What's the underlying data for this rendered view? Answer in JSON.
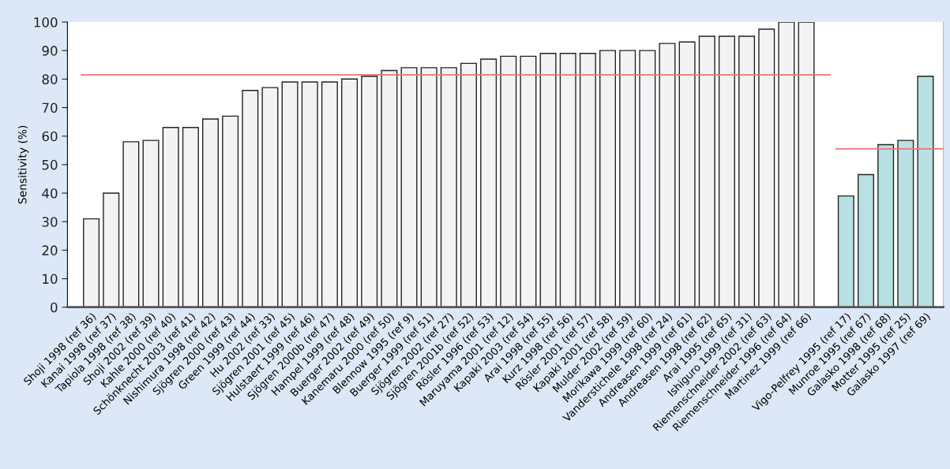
{
  "chart_data": {
    "type": "bar",
    "ylabel": "Sensitivity (%)",
    "categories": [
      "Shoji 1998 (ref 36)",
      "Kanai 1998 (ref 37)",
      "Tapiola 1998 (ref 38)",
      "Shoji 2002 (ref 39)",
      "Kahle 2000 (ref 40)",
      "Schönknecht 2003 (ref 41)",
      "Nishimura 1998 (ref 42)",
      "Sjögren 2000 (ref 43)",
      "Green 1999 (ref 44)",
      "Hu 2002 (ref 33)",
      "Sjögren 2001 (ref 45)",
      "Hulstaert 1999 (ref 46)",
      "Sjögren 2000b (ref 47)",
      "Hampel 1999 (ref 48)",
      "Buerger 2002 (ref 49)",
      "Kanemaru 2000 (ref 50)",
      "Blennow 1995 (ref 9)",
      "Buerger 1999 (ref 51)",
      "Sjögren 2002 (ref 27)",
      "Sjögren 2001b (ref 52)",
      "Rösler 1996 (ref 53)",
      "Maruyama 2001 (ref 12)",
      "Kapaki 2003 (ref 54)",
      "Arai 1998 (ref 55)",
      "Kurz 1998 (ref 56)",
      "Rösler 2001 (ref 57)",
      "Kapaki 2001 (ref 58)",
      "Mulder 2002 (ref 59)",
      "Morikawa 1999 (ref 60)",
      "Vanderstichele 1998 (ref 24)",
      "Andreasen 1999 (ref 61)",
      "Andreasen 1998 (ref 62)",
      "Arai 1995 (ref 65)",
      "Ishiguro 1999 (ref 31)",
      "Riemenschneider 2002 (ref 63)",
      "Riemenschneider 1996 (ref 64)",
      "Martinez 1999 (ref 66)",
      null,
      "Vigo-Pelfrey 1995 (ref 17)",
      "Munroe 1995 (ref 67)",
      "Galasko 1998 (ref 68)",
      "Motter 1995 (ref 25)",
      "Galasko 1997 (ref 69)"
    ],
    "series": [
      {
        "color": "#f3f3f6",
        "values": [
          31,
          40,
          58,
          58.5,
          63,
          63,
          66,
          67,
          76,
          77,
          79,
          79,
          79,
          80,
          81,
          83,
          84,
          84,
          84,
          85.5,
          87,
          88,
          88,
          89,
          89,
          89,
          90,
          90,
          90,
          92.5,
          93,
          95,
          95,
          95,
          97.5,
          100,
          100,
          null,
          null,
          null,
          null,
          null,
          null
        ]
      },
      {
        "color": "#b9e0e2",
        "values": [
          null,
          null,
          null,
          null,
          null,
          null,
          null,
          null,
          null,
          null,
          null,
          null,
          null,
          null,
          null,
          null,
          null,
          null,
          null,
          null,
          null,
          null,
          null,
          null,
          null,
          null,
          null,
          null,
          null,
          null,
          null,
          null,
          null,
          null,
          null,
          null,
          null,
          null,
          39,
          46.5,
          57,
          58.5,
          81
        ]
      }
    ],
    "ylim": [
      0,
      100
    ],
    "yticks": [
      0,
      10,
      20,
      30,
      40,
      50,
      60,
      70,
      80,
      90,
      100
    ],
    "ref_lines": [
      {
        "axis": "y",
        "value": 81.5,
        "color": "#e8767a"
      },
      {
        "axis": "y",
        "value": 55.5,
        "color": "#e8767a"
      }
    ],
    "grid": false,
    "legend": false
  }
}
